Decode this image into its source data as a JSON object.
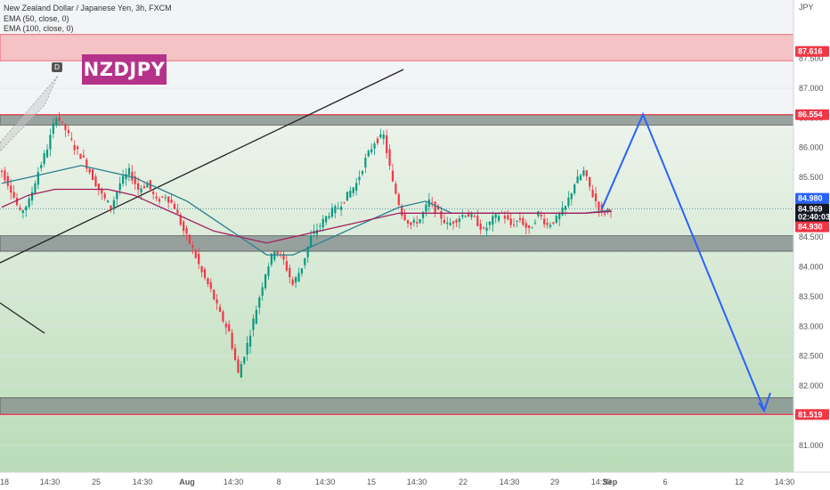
{
  "chart_data": {
    "type": "candlestick",
    "title": "New Zealand Dollar / Japanese Yen, 3h, FXCM",
    "symbol_badge": "NZDJPY",
    "currency_label": "JPY",
    "indicators": [
      "EMA (50, close, 0)",
      "EMA (100, close, 0)"
    ],
    "pattern_marker": "D",
    "ylim": [
      80.7,
      88.3
    ],
    "y_ticks": [
      "87.500",
      "87.000",
      "86.500",
      "86.000",
      "85.500",
      "85.000",
      "84.500",
      "84.000",
      "83.500",
      "83.000",
      "82.500",
      "82.000",
      "81.500",
      "81.000"
    ],
    "x_labels": [
      "18",
      "14:30",
      "25",
      "14:30",
      "Aug",
      "14:30",
      "8",
      "14:30",
      "15",
      "14:30",
      "22",
      "14:30",
      "29",
      "14:30",
      "Sep",
      "6",
      "12",
      "14:30"
    ],
    "price_tags": [
      {
        "label": "87.616",
        "price": 87.616,
        "color": "#f23645"
      },
      {
        "label": "86.554",
        "price": 86.554,
        "color": "#f23645"
      },
      {
        "label": "84.980",
        "price": 84.98,
        "color": "#2962ff"
      },
      {
        "label": "84.969",
        "price": 84.969,
        "color": "#131722"
      },
      {
        "label": "02:40:03",
        "price": 84.88,
        "color": "#131722"
      },
      {
        "label": "84.930",
        "price": 84.93,
        "color": "#f23645"
      },
      {
        "label": "81.519",
        "price": 81.519,
        "color": "#f23645"
      }
    ],
    "zones": [
      {
        "from": 87.9,
        "to": 87.46,
        "fill": "#f5b8bd",
        "border": "#e5505a"
      },
      {
        "from": 86.55,
        "to": 86.38,
        "fill": "#8a9493",
        "border": "#555"
      },
      {
        "from": 84.52,
        "to": 84.26,
        "fill": "#8a9493",
        "border": "#555"
      },
      {
        "from": 81.8,
        "to": 81.52,
        "fill": "#8a9493",
        "border": "#555"
      }
    ],
    "close_series": [
      85.6,
      85.3,
      84.9,
      85.1,
      85.6,
      86.0,
      86.55,
      86.3,
      86.0,
      85.8,
      85.5,
      85.2,
      85.0,
      85.4,
      85.6,
      85.3,
      85.4,
      85.1,
      85.2,
      85.0,
      84.6,
      84.3,
      83.9,
      83.6,
      83.2,
      82.9,
      82.2,
      82.7,
      83.3,
      83.9,
      84.3,
      84.1,
      83.7,
      84.0,
      84.5,
      84.7,
      84.9,
      85.0,
      85.2,
      85.4,
      85.8,
      86.1,
      86.2,
      85.4,
      84.9,
      84.7,
      84.8,
      85.1,
      84.9,
      84.7,
      84.8,
      84.9,
      84.8,
      84.6,
      84.8,
      84.9,
      84.7,
      84.8,
      84.6,
      84.9,
      84.7,
      84.8,
      85.0,
      85.4,
      85.6,
      85.2,
      84.9,
      84.98
    ],
    "forecast_path": [
      [
        84.98,
        0
      ],
      [
        86.56,
        12
      ],
      [
        81.6,
        36
      ]
    ],
    "ema50": [
      85.4,
      85.5,
      85.6,
      85.7,
      85.6,
      85.5,
      85.3,
      85.1,
      84.8,
      84.5,
      84.2,
      84.2,
      84.4,
      84.6,
      84.8,
      85.0,
      85.1,
      84.9,
      84.9,
      84.9,
      84.9,
      84.9,
      84.9,
      84.95
    ],
    "ema100": [
      85.0,
      85.2,
      85.3,
      85.3,
      85.3,
      85.2,
      85.0,
      84.8,
      84.6,
      84.5,
      84.4,
      84.5,
      84.6,
      84.7,
      84.8,
      84.9,
      84.9,
      84.9,
      84.9,
      84.9,
      84.9,
      84.9,
      84.9,
      84.93
    ]
  }
}
